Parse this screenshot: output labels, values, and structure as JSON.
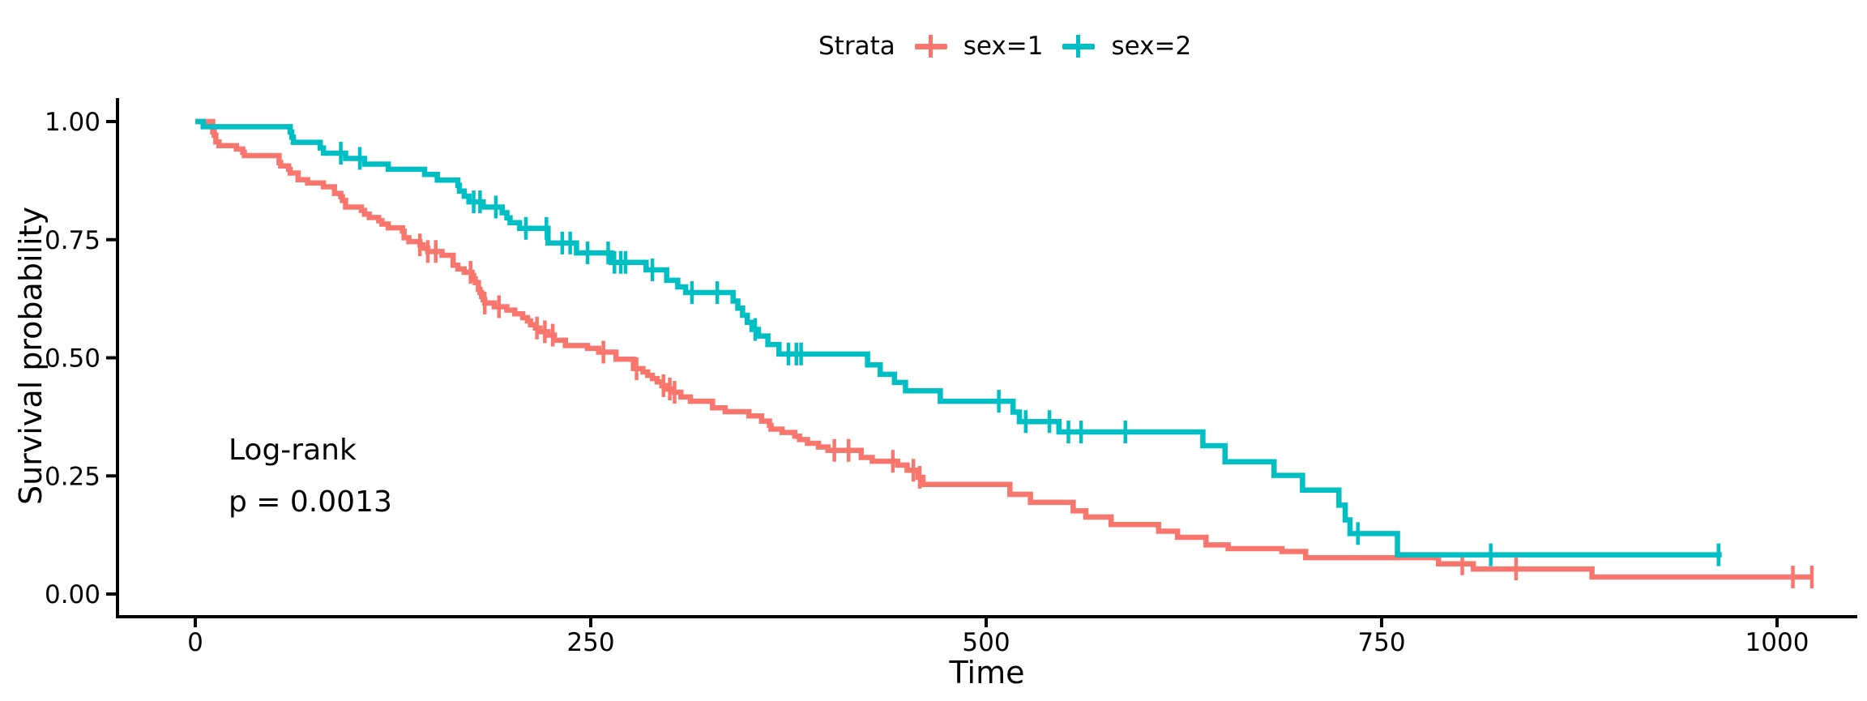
{
  "colors": {
    "sex1": "#F8766D",
    "sex2": "#00BFC4",
    "axis": "#000000",
    "background": "#FFFFFF"
  },
  "legend": {
    "title": "Strata",
    "items": [
      {
        "label": "sex=1",
        "color": "#F8766D",
        "symbol": "censor-plus"
      },
      {
        "label": "sex=2",
        "color": "#00BFC4",
        "symbol": "censor-plus"
      }
    ],
    "position": "top"
  },
  "annotation": {
    "line1": "Log-rank",
    "line2": "p = 0.0013"
  },
  "axes": {
    "x": {
      "label": "Time",
      "tick_labels": [
        "0",
        "250",
        "500",
        "750",
        "1000"
      ],
      "tick_values": [
        0,
        250,
        500,
        750,
        1000
      ]
    },
    "y": {
      "label": "Survival probability",
      "tick_labels": [
        "0.00",
        "0.25",
        "0.50",
        "0.75",
        "1.00"
      ],
      "tick_values": [
        0,
        0.25,
        0.5,
        0.75,
        1
      ]
    }
  },
  "chart_data": {
    "type": "line",
    "subtype": "kaplan-meier-step",
    "title": "",
    "xlabel": "Time",
    "ylabel": "Survival probability",
    "xlim": [
      0,
      1075
    ],
    "ylim": [
      0,
      1
    ],
    "grid": false,
    "legend_position": "top",
    "annotations": [
      "Log-rank",
      "p = 0.0013"
    ],
    "series": [
      {
        "name": "sex=1",
        "color": "#F8766D",
        "end_time": 1022,
        "steps": [
          [
            0,
            1.0
          ],
          [
            11,
            0.978
          ],
          [
            12,
            0.971
          ],
          [
            13,
            0.957
          ],
          [
            15,
            0.949
          ],
          [
            26,
            0.942
          ],
          [
            30,
            0.935
          ],
          [
            31,
            0.928
          ],
          [
            53,
            0.913
          ],
          [
            54,
            0.906
          ],
          [
            59,
            0.899
          ],
          [
            60,
            0.891
          ],
          [
            65,
            0.877
          ],
          [
            71,
            0.87
          ],
          [
            81,
            0.862
          ],
          [
            88,
            0.848
          ],
          [
            92,
            0.841
          ],
          [
            93,
            0.833
          ],
          [
            95,
            0.819
          ],
          [
            105,
            0.812
          ],
          [
            107,
            0.804
          ],
          [
            110,
            0.797
          ],
          [
            116,
            0.79
          ],
          [
            118,
            0.783
          ],
          [
            122,
            0.775
          ],
          [
            131,
            0.768
          ],
          [
            132,
            0.754
          ],
          [
            135,
            0.746
          ],
          [
            142,
            0.739
          ],
          [
            144,
            0.732
          ],
          [
            147,
            0.725
          ],
          [
            156,
            0.717
          ],
          [
            163,
            0.696
          ],
          [
            166,
            0.688
          ],
          [
            170,
            0.681
          ],
          [
            175,
            0.674
          ],
          [
            176,
            0.667
          ],
          [
            177,
            0.659
          ],
          [
            179,
            0.645
          ],
          [
            180,
            0.638
          ],
          [
            181,
            0.63
          ],
          [
            182,
            0.623
          ],
          [
            183,
            0.616
          ],
          [
            189,
            0.608
          ],
          [
            197,
            0.601
          ],
          [
            202,
            0.593
          ],
          [
            207,
            0.585
          ],
          [
            210,
            0.578
          ],
          [
            212,
            0.57
          ],
          [
            215,
            0.563
          ],
          [
            218,
            0.555
          ],
          [
            223,
            0.548
          ],
          [
            227,
            0.537
          ],
          [
            234,
            0.526
          ],
          [
            248,
            0.52
          ],
          [
            255,
            0.512
          ],
          [
            266,
            0.497
          ],
          [
            277,
            0.477
          ],
          [
            283,
            0.47
          ],
          [
            286,
            0.463
          ],
          [
            289,
            0.456
          ],
          [
            292,
            0.449
          ],
          [
            295,
            0.441
          ],
          [
            298,
            0.434
          ],
          [
            301,
            0.427
          ],
          [
            307,
            0.417
          ],
          [
            313,
            0.408
          ],
          [
            327,
            0.394
          ],
          [
            335,
            0.386
          ],
          [
            350,
            0.377
          ],
          [
            358,
            0.366
          ],
          [
            363,
            0.357
          ],
          [
            364,
            0.349
          ],
          [
            371,
            0.342
          ],
          [
            379,
            0.334
          ],
          [
            382,
            0.327
          ],
          [
            387,
            0.319
          ],
          [
            394,
            0.311
          ],
          [
            400,
            0.304
          ],
          [
            421,
            0.289
          ],
          [
            428,
            0.281
          ],
          [
            444,
            0.273
          ],
          [
            450,
            0.262
          ],
          [
            457,
            0.247
          ],
          [
            460,
            0.232
          ],
          [
            515,
            0.211
          ],
          [
            528,
            0.194
          ],
          [
            555,
            0.176
          ],
          [
            563,
            0.163
          ],
          [
            579,
            0.147
          ],
          [
            609,
            0.133
          ],
          [
            621,
            0.12
          ],
          [
            639,
            0.104
          ],
          [
            653,
            0.096
          ],
          [
            687,
            0.09
          ],
          [
            702,
            0.077
          ],
          [
            786,
            0.064
          ],
          [
            808,
            0.053
          ],
          [
            883,
            0.036
          ]
        ],
        "censor_times": [
          142,
          147,
          152,
          174,
          183,
          192,
          216,
          221,
          226,
          258,
          279,
          296,
          300,
          303,
          404,
          413,
          441,
          454,
          458,
          801,
          835,
          1010,
          1022
        ]
      },
      {
        "name": "sex=2",
        "color": "#00BFC4",
        "end_time": 965,
        "steps": [
          [
            0,
            1.0
          ],
          [
            5,
            0.989
          ],
          [
            60,
            0.978
          ],
          [
            61,
            0.967
          ],
          [
            62,
            0.956
          ],
          [
            79,
            0.944
          ],
          [
            81,
            0.933
          ],
          [
            95,
            0.922
          ],
          [
            107,
            0.91
          ],
          [
            122,
            0.899
          ],
          [
            145,
            0.888
          ],
          [
            153,
            0.876
          ],
          [
            166,
            0.865
          ],
          [
            167,
            0.853
          ],
          [
            170,
            0.842
          ],
          [
            173,
            0.83
          ],
          [
            182,
            0.819
          ],
          [
            194,
            0.807
          ],
          [
            197,
            0.796
          ],
          [
            199,
            0.786
          ],
          [
            205,
            0.774
          ],
          [
            223,
            0.743
          ],
          [
            241,
            0.722
          ],
          [
            263,
            0.702
          ],
          [
            285,
            0.686
          ],
          [
            298,
            0.664
          ],
          [
            305,
            0.65
          ],
          [
            310,
            0.638
          ],
          [
            340,
            0.62
          ],
          [
            343,
            0.605
          ],
          [
            346,
            0.59
          ],
          [
            349,
            0.575
          ],
          [
            352,
            0.56
          ],
          [
            356,
            0.546
          ],
          [
            362,
            0.528
          ],
          [
            369,
            0.508
          ],
          [
            425,
            0.485
          ],
          [
            433,
            0.465
          ],
          [
            442,
            0.448
          ],
          [
            449,
            0.43
          ],
          [
            471,
            0.408
          ],
          [
            517,
            0.385
          ],
          [
            521,
            0.365
          ],
          [
            546,
            0.343
          ],
          [
            637,
            0.314
          ],
          [
            651,
            0.28
          ],
          [
            682,
            0.251
          ],
          [
            700,
            0.22
          ],
          [
            723,
            0.188
          ],
          [
            727,
            0.157
          ],
          [
            730,
            0.128
          ],
          [
            760,
            0.083
          ]
        ],
        "censor_times": [
          92,
          104,
          176,
          180,
          190,
          209,
          222,
          232,
          237,
          248,
          261,
          265,
          269,
          272,
          289,
          314,
          330,
          354,
          375,
          380,
          383,
          508,
          525,
          540,
          552,
          560,
          588,
          735,
          819,
          963
        ]
      }
    ]
  }
}
